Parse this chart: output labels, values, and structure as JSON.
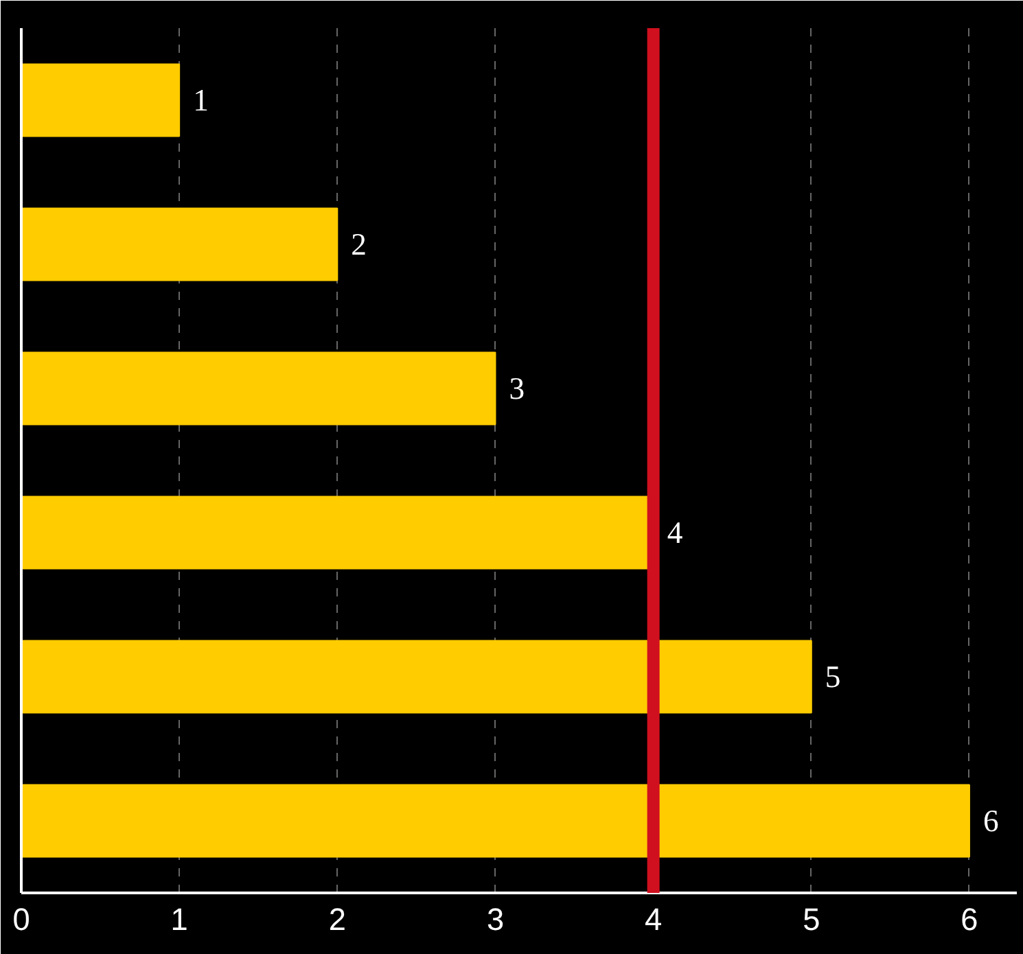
{
  "chart_data": {
    "type": "bar",
    "orientation": "horizontal",
    "categories": [
      null,
      null,
      null,
      null,
      null,
      null
    ],
    "values": [
      1,
      2,
      3,
      4,
      5,
      6
    ],
    "color": "#ffcc00",
    "xlim": [
      0,
      6.3
    ],
    "xticks": [
      0,
      1,
      2,
      3,
      4,
      5,
      6
    ],
    "ref_lines": [
      {
        "axis": "x",
        "value": 4,
        "color": "#d0101e"
      }
    ],
    "data_labels": true,
    "grid": "x",
    "tick_labels": "x"
  }
}
